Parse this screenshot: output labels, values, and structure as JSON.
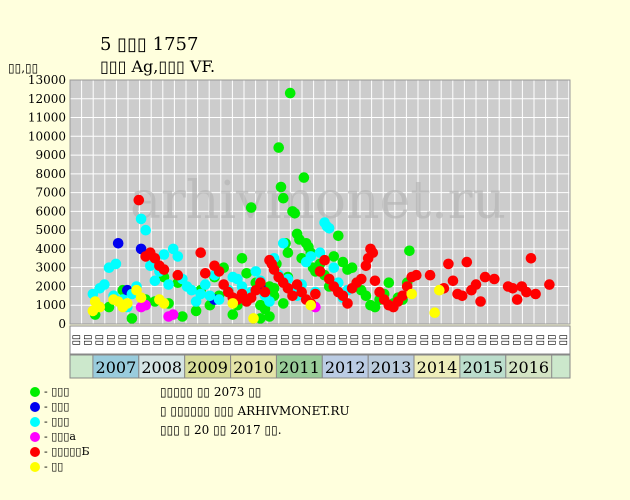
{
  "header": {
    "title": "5 ▯▯▯ 1757",
    "subtitle": "▯▯▯ Ag,▯▯▯ VF.",
    "yunit": "▯▯,▯▯"
  },
  "watermark": "arhivmonet.ru",
  "info": {
    "line1": "▯▯▯▯▯ ▯▯ 2073 ▯▯",
    "line2": "▯ ▯▯▯▯▯▯ ▯▯▯ ARHIVMONET.RU",
    "line3": "▯▯▯ ▯ 20 ▯▯ 2017 ▯▯."
  },
  "colors": {
    "background": "#ffffdd",
    "plot_bg": "#cccccc",
    "grid": "#ffffff",
    "year_2007": "#99ccdd",
    "year_2008": "#d4e4e4",
    "year_2009": "#d8dd99",
    "year_2010": "#e4e4a8",
    "year_2011": "#99cc99",
    "year_2012": "#bbcce4",
    "year_2013": "#bbccdd",
    "year_2014": "#eeeebb",
    "year_2015": "#bbddcc",
    "year_2016": "#d4e4c4"
  },
  "chart_data": {
    "type": "scatter",
    "ylim": [
      0,
      13000
    ],
    "yticks": [
      0,
      1000,
      2000,
      3000,
      4000,
      5000,
      6000,
      7000,
      8000,
      9000,
      10000,
      11000,
      12000,
      13000
    ],
    "grid": true,
    "xlim": [
      2006.05,
      2016.95
    ],
    "years": [
      {
        "label": "2007",
        "start": 2006.55,
        "end": 2007.55,
        "color": "#99ccdd"
      },
      {
        "label": "2008",
        "start": 2007.55,
        "end": 2008.55,
        "color": "#d4e4e4"
      },
      {
        "label": "2009",
        "start": 2008.55,
        "end": 2009.55,
        "color": "#d8dd99"
      },
      {
        "label": "2010",
        "start": 2009.55,
        "end": 2010.55,
        "color": "#e4e4a8"
      },
      {
        "label": "2011",
        "start": 2010.55,
        "end": 2011.55,
        "color": "#99cc99"
      },
      {
        "label": "2012",
        "start": 2011.55,
        "end": 2012.55,
        "color": "#bbcce4"
      },
      {
        "label": "2013",
        "start": 2012.55,
        "end": 2013.55,
        "color": "#bbccdd"
      },
      {
        "label": "2014",
        "start": 2013.55,
        "end": 2014.55,
        "color": "#eeeebb"
      },
      {
        "label": "2015",
        "start": 2014.55,
        "end": 2015.55,
        "color": "#bbddcc"
      },
      {
        "label": "2016",
        "start": 2015.55,
        "end": 2016.55,
        "color": "#d4e4c4"
      }
    ],
    "month_labels": [
      "▯▯",
      "▯▯",
      "▯▯",
      "▯▯"
    ],
    "series": [
      {
        "name": "- ▯▯▯",
        "color": "#00ee00",
        "points": [
          [
            2006.6,
            500
          ],
          [
            2006.9,
            900
          ],
          [
            2007.2,
            1800
          ],
          [
            2007.4,
            300
          ],
          [
            2007.7,
            1300
          ],
          [
            2007.9,
            1200
          ],
          [
            2008.1,
            2500
          ],
          [
            2008.2,
            1100
          ],
          [
            2008.4,
            2200
          ],
          [
            2008.5,
            400
          ],
          [
            2008.8,
            700
          ],
          [
            2008.9,
            1800
          ],
          [
            2009.1,
            1000
          ],
          [
            2009.2,
            2500
          ],
          [
            2009.3,
            1500
          ],
          [
            2009.4,
            3000
          ],
          [
            2009.5,
            1800
          ],
          [
            2009.6,
            500
          ],
          [
            2009.7,
            1000
          ],
          [
            2009.8,
            3500
          ],
          [
            2009.9,
            2700
          ],
          [
            2010.0,
            6200
          ],
          [
            2010.1,
            2200
          ],
          [
            2010.2,
            300
          ],
          [
            2010.3,
            800
          ],
          [
            2010.4,
            2000
          ],
          [
            2010.5,
            1500
          ],
          [
            2010.55,
            3200
          ],
          [
            2010.6,
            9400
          ],
          [
            2010.65,
            7300
          ],
          [
            2010.7,
            6700
          ],
          [
            2010.75,
            4300
          ],
          [
            2010.8,
            3800
          ],
          [
            2010.85,
            12300
          ],
          [
            2010.9,
            6000
          ],
          [
            2010.95,
            5900
          ],
          [
            2011.0,
            4800
          ],
          [
            2011.05,
            4500
          ],
          [
            2011.1,
            3500
          ],
          [
            2011.15,
            7800
          ],
          [
            2011.2,
            4300
          ],
          [
            2011.25,
            4100
          ],
          [
            2011.3,
            3800
          ],
          [
            2011.35,
            3000
          ],
          [
            2011.4,
            2800
          ],
          [
            2011.5,
            3200
          ],
          [
            2011.6,
            2600
          ],
          [
            2011.7,
            2000
          ],
          [
            2011.8,
            3600
          ],
          [
            2011.9,
            4700
          ],
          [
            2012.0,
            3300
          ],
          [
            2012.1,
            2900
          ],
          [
            2012.2,
            3000
          ],
          [
            2012.3,
            2200
          ],
          [
            2012.4,
            1800
          ],
          [
            2012.5,
            1500
          ],
          [
            2012.6,
            1000
          ],
          [
            2012.7,
            900
          ],
          [
            2012.8,
            1300
          ],
          [
            2012.9,
            1600
          ],
          [
            2013.0,
            2200
          ],
          [
            2013.1,
            1100
          ],
          [
            2013.2,
            1400
          ],
          [
            2013.3,
            1300
          ],
          [
            2013.4,
            2200
          ],
          [
            2013.45,
            3900
          ],
          [
            2010.5,
            1900
          ],
          [
            2010.4,
            400
          ],
          [
            2010.3,
            1600
          ],
          [
            2010.2,
            1000
          ],
          [
            2010.7,
            1100
          ],
          [
            2010.8,
            2500
          ]
        ]
      },
      {
        "name": "- ▯▯▯",
        "color": "#0000ee",
        "points": [
          [
            2007.1,
            4300
          ],
          [
            2007.3,
            1800
          ],
          [
            2007.6,
            4000
          ],
          [
            2009.2,
            1300
          ],
          [
            2010.2,
            2000
          ]
        ]
      },
      {
        "name": "- ▯▯▯",
        "color": "#00ffff",
        "points": [
          [
            2006.55,
            1600
          ],
          [
            2006.7,
            1900
          ],
          [
            2006.8,
            2100
          ],
          [
            2006.9,
            3000
          ],
          [
            2007.0,
            1500
          ],
          [
            2007.05,
            3200
          ],
          [
            2007.2,
            1300
          ],
          [
            2007.3,
            900
          ],
          [
            2007.4,
            1600
          ],
          [
            2007.5,
            2000
          ],
          [
            2007.6,
            5600
          ],
          [
            2007.7,
            5000
          ],
          [
            2007.8,
            3100
          ],
          [
            2007.9,
            2300
          ],
          [
            2008.0,
            2800
          ],
          [
            2008.1,
            3700
          ],
          [
            2008.2,
            2100
          ],
          [
            2008.3,
            4000
          ],
          [
            2008.4,
            3600
          ],
          [
            2008.5,
            2400
          ],
          [
            2008.6,
            2000
          ],
          [
            2008.7,
            1800
          ],
          [
            2008.8,
            1200
          ],
          [
            2008.9,
            1600
          ],
          [
            2009.0,
            2100
          ],
          [
            2009.1,
            1500
          ],
          [
            2009.2,
            2600
          ],
          [
            2009.3,
            1300
          ],
          [
            2009.4,
            2100
          ],
          [
            2009.5,
            1800
          ],
          [
            2009.6,
            2500
          ],
          [
            2009.7,
            2400
          ],
          [
            2009.8,
            2000
          ],
          [
            2009.9,
            1500
          ],
          [
            2010.0,
            1700
          ],
          [
            2010.1,
            2800
          ],
          [
            2010.2,
            2300
          ],
          [
            2010.3,
            1500
          ],
          [
            2010.4,
            1200
          ],
          [
            2010.5,
            3500
          ],
          [
            2010.6,
            2600
          ],
          [
            2010.7,
            4300
          ],
          [
            2010.8,
            2400
          ],
          [
            2010.9,
            1800
          ],
          [
            2011.0,
            1500
          ],
          [
            2011.1,
            2100
          ],
          [
            2011.2,
            3300
          ],
          [
            2011.3,
            3600
          ],
          [
            2011.4,
            1700
          ],
          [
            2011.5,
            3800
          ],
          [
            2011.6,
            5400
          ],
          [
            2011.65,
            5200
          ],
          [
            2011.7,
            5100
          ],
          [
            2011.8,
            3000
          ],
          [
            2011.9,
            2200
          ],
          [
            2012.0,
            1400
          ],
          [
            2012.1,
            1800
          ]
        ]
      },
      {
        "name": "- ▯▯▯а",
        "color": "#ff00ff",
        "points": [
          [
            2007.6,
            900
          ],
          [
            2007.7,
            1000
          ],
          [
            2008.2,
            400
          ],
          [
            2008.3,
            500
          ],
          [
            2011.4,
            900
          ]
        ]
      },
      {
        "name": "- ▯▯▯▯▯Б",
        "color": "#ff0000",
        "points": [
          [
            2007.55,
            6600
          ],
          [
            2007.7,
            3600
          ],
          [
            2007.8,
            3800
          ],
          [
            2007.9,
            3500
          ],
          [
            2008.0,
            3100
          ],
          [
            2008.1,
            2900
          ],
          [
            2008.4,
            2600
          ],
          [
            2008.9,
            3800
          ],
          [
            2009.0,
            2700
          ],
          [
            2009.2,
            3100
          ],
          [
            2009.3,
            2800
          ],
          [
            2009.4,
            2100
          ],
          [
            2009.5,
            1700
          ],
          [
            2009.6,
            1400
          ],
          [
            2009.7,
            1300
          ],
          [
            2009.8,
            1600
          ],
          [
            2009.9,
            1200
          ],
          [
            2010.0,
            1400
          ],
          [
            2010.1,
            1800
          ],
          [
            2010.2,
            2200
          ],
          [
            2010.3,
            1700
          ],
          [
            2010.4,
            3400
          ],
          [
            2010.45,
            3200
          ],
          [
            2010.5,
            2900
          ],
          [
            2010.6,
            2500
          ],
          [
            2010.7,
            2200
          ],
          [
            2010.8,
            1900
          ],
          [
            2010.9,
            1500
          ],
          [
            2011.0,
            2100
          ],
          [
            2011.1,
            1700
          ],
          [
            2011.2,
            1300
          ],
          [
            2011.3,
            1100
          ],
          [
            2011.4,
            1600
          ],
          [
            2011.5,
            2800
          ],
          [
            2011.6,
            3400
          ],
          [
            2011.7,
            2400
          ],
          [
            2011.8,
            2000
          ],
          [
            2011.9,
            1700
          ],
          [
            2012.0,
            1500
          ],
          [
            2012.1,
            1100
          ],
          [
            2012.2,
            1900
          ],
          [
            2012.3,
            2200
          ],
          [
            2012.4,
            2400
          ],
          [
            2012.5,
            3100
          ],
          [
            2012.55,
            3500
          ],
          [
            2012.6,
            4000
          ],
          [
            2012.65,
            3800
          ],
          [
            2012.7,
            2300
          ],
          [
            2012.8,
            1700
          ],
          [
            2012.9,
            1300
          ],
          [
            2013.0,
            1000
          ],
          [
            2013.1,
            900
          ],
          [
            2013.2,
            1200
          ],
          [
            2013.3,
            1500
          ],
          [
            2013.4,
            2000
          ],
          [
            2013.5,
            2500
          ],
          [
            2013.6,
            2600
          ],
          [
            2013.9,
            2600
          ],
          [
            2014.2,
            1900
          ],
          [
            2014.3,
            3200
          ],
          [
            2014.4,
            2300
          ],
          [
            2014.5,
            1600
          ],
          [
            2014.6,
            1500
          ],
          [
            2014.7,
            3300
          ],
          [
            2014.8,
            1800
          ],
          [
            2014.9,
            2100
          ],
          [
            2015.0,
            1200
          ],
          [
            2015.1,
            2500
          ],
          [
            2015.3,
            2400
          ],
          [
            2015.6,
            2000
          ],
          [
            2015.7,
            1900
          ],
          [
            2015.8,
            1300
          ],
          [
            2015.9,
            2000
          ],
          [
            2016.0,
            1700
          ],
          [
            2016.1,
            3500
          ],
          [
            2016.2,
            1600
          ],
          [
            2016.5,
            2100
          ]
        ]
      },
      {
        "name": "- ▯▯",
        "color": "#ffff00",
        "points": [
          [
            2006.55,
            700
          ],
          [
            2006.6,
            1200
          ],
          [
            2006.7,
            900
          ],
          [
            2007.0,
            1300
          ],
          [
            2007.1,
            1200
          ],
          [
            2007.2,
            900
          ],
          [
            2007.3,
            1100
          ],
          [
            2007.5,
            1800
          ],
          [
            2007.6,
            1400
          ],
          [
            2008.0,
            1300
          ],
          [
            2008.1,
            1100
          ],
          [
            2009.6,
            1100
          ],
          [
            2010.05,
            300
          ],
          [
            2011.3,
            1000
          ],
          [
            2013.5,
            1600
          ],
          [
            2014.0,
            600
          ],
          [
            2014.1,
            1800
          ]
        ]
      }
    ]
  }
}
